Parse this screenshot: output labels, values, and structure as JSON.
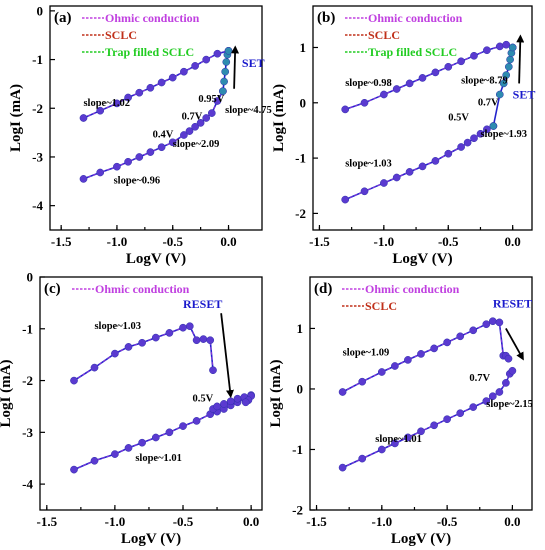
{
  "colors": {
    "ohmic": "#c040e0",
    "sclc": "#c0301a",
    "trap": "#22cc22",
    "curve": "#2222cc",
    "marker": "#5a3ad0",
    "set_label": "#1a1acc"
  },
  "chart_data": [
    {
      "type": "line",
      "panel": "(a)",
      "xlabel": "LogV (V)",
      "ylabel": "LogI (mA)",
      "xlim": [
        -1.6,
        0.3
      ],
      "ylim": [
        -4.5,
        0.1
      ],
      "xticks": [
        -1.5,
        -1.0,
        -0.5,
        0.0
      ],
      "xtick_labels": [
        "-1.5",
        "-1.0",
        "-0.5",
        "0.0"
      ],
      "yticks": [
        0,
        -1,
        -2,
        -3,
        -4
      ],
      "ytick_labels": [
        "0",
        "-1",
        "-2",
        "-3",
        "-4"
      ],
      "legend": [
        {
          "label": "Ohmic conduction",
          "color": "#c040e0"
        },
        {
          "label": "SCLC",
          "color": "#c0301a"
        },
        {
          "label": "Trap filled SCLC",
          "color": "#22cc22"
        }
      ],
      "series": [
        {
          "segment": "lrs",
          "x": [
            -1.3,
            -1.15,
            -1.0,
            -0.9,
            -0.8,
            -0.7,
            -0.6,
            -0.5,
            -0.4,
            -0.3,
            -0.2,
            -0.1,
            0.0
          ],
          "y": [
            -2.2,
            -2.05,
            -1.9,
            -1.78,
            -1.68,
            -1.58,
            -1.47,
            -1.37,
            -1.25,
            -1.13,
            -1.0,
            -0.88,
            -0.82
          ]
        },
        {
          "segment": "hrs",
          "x": [
            -1.3,
            -1.15,
            -1.0,
            -0.9,
            -0.8,
            -0.7,
            -0.6,
            -0.5,
            -0.4,
            -0.35,
            -0.3,
            -0.25,
            -0.2,
            -0.15,
            -0.1,
            -0.05
          ],
          "y": [
            -3.45,
            -3.32,
            -3.2,
            -3.1,
            -3.0,
            -2.9,
            -2.8,
            -2.7,
            -2.55,
            -2.47,
            -2.38,
            -2.3,
            -2.2,
            -2.1,
            -1.85,
            -1.65
          ]
        },
        {
          "segment": "set",
          "x": [
            -0.05,
            -0.04,
            -0.03,
            -0.02,
            -0.01,
            0.0
          ],
          "y": [
            -1.65,
            -1.45,
            -1.25,
            -1.05,
            -0.9,
            -0.82
          ]
        }
      ],
      "annotations": [
        {
          "text": "slope~1.02",
          "x": -1.3,
          "y": -1.95
        },
        {
          "text": "slope~0.96",
          "x": -1.03,
          "y": -3.55
        },
        {
          "text": "slope~2.09",
          "x": -0.5,
          "y": -2.8
        },
        {
          "text": "slope~4.75",
          "x": -0.03,
          "y": -2.1
        },
        {
          "text": "0.95V",
          "x": -0.27,
          "y": -1.87
        },
        {
          "text": "0.7V",
          "x": -0.42,
          "y": -2.23
        },
        {
          "text": "0.4V",
          "x": -0.68,
          "y": -2.6
        },
        {
          "text": "SET",
          "x": 0.12,
          "y": -1.15
        }
      ],
      "arrow": {
        "from": [
          0.05,
          -1.6
        ],
        "to": [
          0.06,
          -0.75
        ]
      }
    },
    {
      "type": "line",
      "panel": "(b)",
      "xlabel": "LogV (V)",
      "ylabel": "LogI (mA)",
      "xlim": [
        -1.55,
        0.15
      ],
      "ylim": [
        -2.3,
        1.75
      ],
      "xticks": [
        -1.5,
        -1.0,
        -0.5,
        0.0
      ],
      "xtick_labels": [
        "-1.5",
        "-1.0",
        "-0.5",
        "0.0"
      ],
      "yticks": [
        1,
        0,
        -1,
        -2
      ],
      "ytick_labels": [
        "1",
        "0",
        "-1",
        "-2"
      ],
      "legend": [
        {
          "label": "Ohmic conduction",
          "color": "#c040e0"
        },
        {
          "label": "SCLC",
          "color": "#c0301a"
        },
        {
          "label": "Trap filled SCLC",
          "color": "#22cc22"
        }
      ],
      "series": [
        {
          "segment": "lrs",
          "x": [
            -1.3,
            -1.15,
            -1.0,
            -0.9,
            -0.8,
            -0.7,
            -0.6,
            -0.5,
            -0.4,
            -0.3,
            -0.2,
            -0.1,
            -0.05,
            0.0
          ],
          "y": [
            -0.12,
            0.0,
            0.15,
            0.25,
            0.35,
            0.45,
            0.55,
            0.65,
            0.75,
            0.85,
            0.95,
            1.02,
            1.05,
            1.0
          ]
        },
        {
          "segment": "hrs",
          "x": [
            -1.3,
            -1.15,
            -1.0,
            -0.9,
            -0.8,
            -0.7,
            -0.6,
            -0.5,
            -0.4,
            -0.35,
            -0.3,
            -0.25,
            -0.2,
            -0.15
          ],
          "y": [
            -1.75,
            -1.6,
            -1.45,
            -1.35,
            -1.25,
            -1.15,
            -1.05,
            -0.92,
            -0.8,
            -0.72,
            -0.64,
            -0.56,
            -0.48,
            -0.42
          ]
        },
        {
          "segment": "set",
          "x": [
            -0.15,
            -0.1,
            -0.07,
            -0.05,
            -0.03,
            -0.02,
            -0.01,
            0.0
          ],
          "y": [
            -0.42,
            0.15,
            0.35,
            0.5,
            0.65,
            0.78,
            0.9,
            1.0
          ]
        }
      ],
      "annotations": [
        {
          "text": "slope~0.98",
          "x": -1.3,
          "y": 0.3
        },
        {
          "text": "slope~1.03",
          "x": -1.3,
          "y": -1.15
        },
        {
          "text": "slope~8.79",
          "x": -0.4,
          "y": 0.35
        },
        {
          "text": "slope~1.93",
          "x": -0.25,
          "y": -0.62
        },
        {
          "text": "0.7V",
          "x": -0.27,
          "y": -0.05
        },
        {
          "text": "0.5V",
          "x": -0.5,
          "y": -0.32
        },
        {
          "text": "SET",
          "x": 0.0,
          "y": 0.08
        }
      ],
      "arrow": {
        "from": [
          0.05,
          0.35
        ],
        "to": [
          0.06,
          1.2
        ]
      }
    },
    {
      "type": "line",
      "panel": "(c)",
      "xlabel": "LogV (V)",
      "ylabel": "LogI (mA)",
      "xlim": [
        -1.55,
        0.08
      ],
      "ylim": [
        -4.5,
        0.0
      ],
      "xticks": [
        -1.5,
        -1.0,
        -0.5,
        0.0
      ],
      "xtick_labels": [
        "-1.5",
        "-1.0",
        "-0.5",
        "0.0"
      ],
      "yticks": [
        0,
        -1,
        -2,
        -3,
        -4
      ],
      "ytick_labels": [
        "0",
        "-1",
        "-2",
        "-3",
        "-4"
      ],
      "legend": [
        {
          "label": "Ohmic conduction",
          "color": "#c040e0"
        }
      ],
      "series": [
        {
          "segment": "lrs",
          "x": [
            -1.3,
            -1.15,
            -1.0,
            -0.9,
            -0.8,
            -0.7,
            -0.6,
            -0.5,
            -0.45,
            -0.4,
            -0.35,
            -0.3,
            -0.28
          ],
          "y": [
            -2.0,
            -1.75,
            -1.48,
            -1.35,
            -1.27,
            -1.17,
            -1.08,
            -0.98,
            -0.95,
            -1.22,
            -1.2,
            -1.22,
            -1.8
          ]
        },
        {
          "segment": "hrs",
          "x": [
            -1.3,
            -1.15,
            -1.0,
            -0.9,
            -0.8,
            -0.7,
            -0.6,
            -0.5,
            -0.4,
            -0.3,
            -0.25,
            -0.2,
            -0.15,
            -0.1,
            -0.05,
            0.0
          ],
          "y": [
            -3.72,
            -3.55,
            -3.42,
            -3.3,
            -3.2,
            -3.1,
            -3.0,
            -2.88,
            -2.78,
            -2.65,
            -2.6,
            -2.55,
            -2.48,
            -2.42,
            -2.35,
            -2.28
          ]
        },
        {
          "segment": "return",
          "x": [
            -0.28,
            -0.25,
            -0.2,
            -0.15,
            -0.1,
            -0.05,
            0.0,
            -0.02,
            -0.04
          ],
          "y": [
            -2.55,
            -2.5,
            -2.45,
            -2.4,
            -2.35,
            -2.32,
            -2.3,
            -2.38,
            -2.42
          ]
        }
      ],
      "annotations": [
        {
          "text": "slope~1.03",
          "x": -1.15,
          "y": -1.0
        },
        {
          "text": "slope~1.01",
          "x": -0.85,
          "y": -3.55
        },
        {
          "text": "0.5V",
          "x": -0.43,
          "y": -2.4
        },
        {
          "text": "RESET",
          "x": -0.5,
          "y": -0.6
        }
      ],
      "arrow": {
        "from": [
          -0.22,
          -0.7
        ],
        "to": [
          -0.15,
          -2.3
        ]
      }
    },
    {
      "type": "line",
      "panel": "(d)",
      "xlabel": "LogV (V)",
      "ylabel": "LogI (mA)",
      "xlim": [
        -1.55,
        0.15
      ],
      "ylim": [
        -2.0,
        1.85
      ],
      "xticks": [
        -1.5,
        -1.0,
        -0.5,
        0.0
      ],
      "xtick_labels": [
        "-1.5",
        "-1.0",
        "-0.5",
        "0.0"
      ],
      "yticks": [
        1,
        0,
        -1,
        -2
      ],
      "ytick_labels": [
        "1",
        "0",
        "-1",
        "-2"
      ],
      "legend": [
        {
          "label": "Ohmic conduction",
          "color": "#c040e0"
        },
        {
          "label": "SCLC",
          "color": "#c0301a"
        }
      ],
      "series": [
        {
          "segment": "lrs",
          "x": [
            -1.3,
            -1.15,
            -1.0,
            -0.9,
            -0.8,
            -0.7,
            -0.6,
            -0.5,
            -0.4,
            -0.3,
            -0.2,
            -0.15,
            -0.1,
            -0.07,
            -0.05,
            -0.03
          ],
          "y": [
            -0.05,
            0.12,
            0.28,
            0.38,
            0.48,
            0.58,
            0.67,
            0.77,
            0.87,
            0.97,
            1.07,
            1.12,
            1.1,
            0.55,
            0.55,
            0.5
          ]
        },
        {
          "segment": "hrs",
          "x": [
            -1.3,
            -1.15,
            -1.0,
            -0.9,
            -0.8,
            -0.7,
            -0.6,
            -0.5,
            -0.4,
            -0.3,
            -0.2,
            -0.15,
            -0.1,
            -0.05,
            -0.02,
            0.0
          ],
          "y": [
            -1.3,
            -1.15,
            -1.0,
            -0.9,
            -0.8,
            -0.7,
            -0.6,
            -0.5,
            -0.4,
            -0.3,
            -0.2,
            -0.12,
            -0.05,
            0.1,
            0.25,
            0.3
          ]
        }
      ],
      "annotations": [
        {
          "text": "slope~1.09",
          "x": -1.3,
          "y": 0.55
        },
        {
          "text": "slope~1.01",
          "x": -1.05,
          "y": -0.88
        },
        {
          "text": "slope~2.15",
          "x": -0.2,
          "y": -0.3
        },
        {
          "text": "0.7V",
          "x": -0.33,
          "y": 0.13
        },
        {
          "text": "RESET",
          "x": -0.15,
          "y": 1.35
        }
      ],
      "arrow": {
        "from": [
          -0.05,
          1.0
        ],
        "to": [
          0.08,
          0.5
        ]
      }
    }
  ]
}
